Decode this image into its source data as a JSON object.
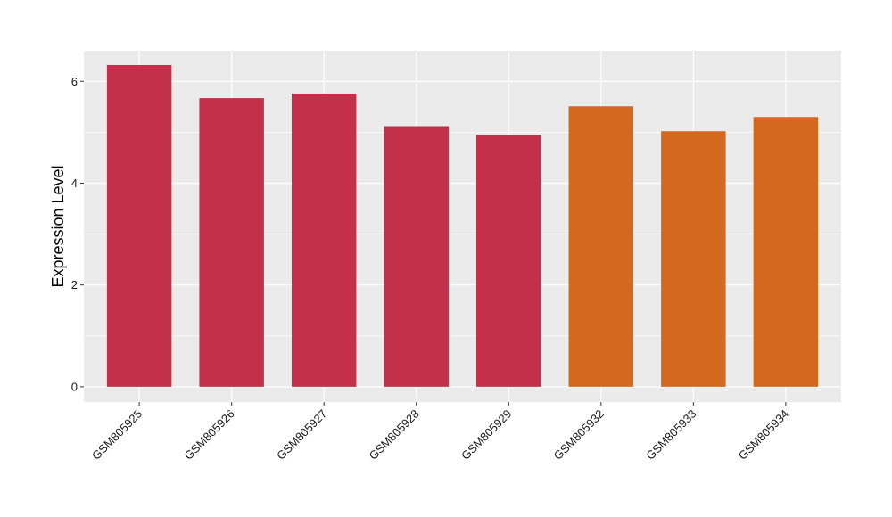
{
  "chart_data": {
    "type": "bar",
    "title": "",
    "xlabel": "",
    "ylabel": "Expression Level",
    "categories": [
      "GSM805925",
      "GSM805926",
      "GSM805927",
      "GSM805928",
      "GSM805929",
      "GSM805932",
      "GSM805933",
      "GSM805934"
    ],
    "values": [
      6.32,
      5.67,
      5.76,
      5.12,
      4.95,
      5.51,
      5.02,
      5.3
    ],
    "bar_colors": [
      "#c3304a",
      "#c3304a",
      "#c3304a",
      "#c3304a",
      "#c3304a",
      "#d4681f",
      "#d4681f",
      "#d4681f"
    ],
    "ylim": [
      -0.3,
      6.6
    ],
    "yticks": [
      0,
      2,
      4,
      6
    ],
    "grid": true,
    "panel_background": "#ebebeb",
    "gridline_color": "#ffffff",
    "legend": "none"
  }
}
